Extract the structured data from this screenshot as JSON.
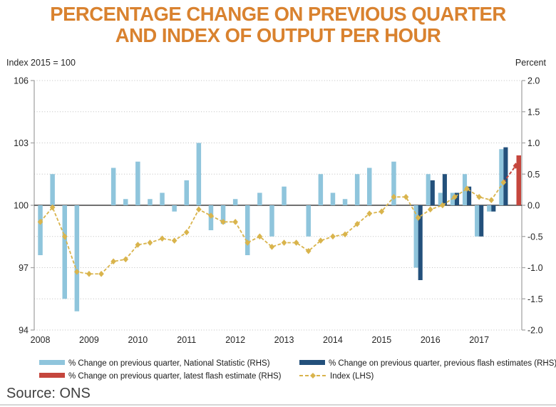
{
  "title": {
    "line1": "PERCENTAGE CHANGE ON PREVIOUS QUARTER",
    "line2": "AND INDEX OF OUTPUT PER HOUR"
  },
  "axis_titles": {
    "left": "Index 2015 = 100",
    "right": "Percent"
  },
  "source": "Source: ONS",
  "colors": {
    "title_orange": "#D9822F",
    "national_statistic": "#8FC5DC",
    "previous_flash": "#23507B",
    "latest_flash": "#C5463D",
    "index_line": "#D9B44C",
    "gridline": "#bfbfbf",
    "zero_line": "#404040",
    "axis_line": "#a6a6a6",
    "tick_text": "#262626"
  },
  "legend": {
    "items": [
      {
        "label": "% Change on previous quarter, National Statistic (RHS)",
        "swatch": "national_statistic"
      },
      {
        "label": "% Change on previous quarter, latest flash estimate (RHS)",
        "swatch": "latest_flash"
      },
      {
        "label": "% Change on previous quarter, previous flash estimates (RHS)",
        "swatch": "previous_flash"
      },
      {
        "label": "Index (LHS)",
        "swatch": "index_line_dashed"
      }
    ]
  },
  "chart_data": {
    "type": "bar+line dual-axis",
    "x_years": [
      "2008",
      "2009",
      "2010",
      "2011",
      "2012",
      "2013",
      "2014",
      "2015",
      "2016",
      "2017"
    ],
    "quarters": [
      "2008 Q1",
      "2008 Q2",
      "2008 Q3",
      "2008 Q4",
      "2009 Q1",
      "2009 Q2",
      "2009 Q3",
      "2009 Q4",
      "2010 Q1",
      "2010 Q2",
      "2010 Q3",
      "2010 Q4",
      "2011 Q1",
      "2011 Q2",
      "2011 Q3",
      "2011 Q4",
      "2012 Q1",
      "2012 Q2",
      "2012 Q3",
      "2012 Q4",
      "2013 Q1",
      "2013 Q2",
      "2013 Q3",
      "2013 Q4",
      "2014 Q1",
      "2014 Q2",
      "2014 Q3",
      "2014 Q4",
      "2015 Q1",
      "2015 Q2",
      "2015 Q3",
      "2015 Q4",
      "2016 Q1",
      "2016 Q2",
      "2016 Q3",
      "2016 Q4",
      "2017 Q1",
      "2017 Q2",
      "2017 Q3",
      "2017 Q4"
    ],
    "left_axis": {
      "label": "Index 2015 = 100",
      "range": [
        94,
        106
      ],
      "ticks": [
        106,
        103,
        100,
        97,
        94
      ],
      "grid": "dotted"
    },
    "right_axis": {
      "label": "Percent",
      "range": [
        -2.0,
        2.0
      ],
      "ticks": [
        2.0,
        1.5,
        1.0,
        0.5,
        0.0,
        -0.5,
        -1.0,
        -1.5,
        -2.0
      ],
      "zero_line": "solid"
    },
    "legend_position": "bottom",
    "series": [
      {
        "name": "% Change on previous quarter, National Statistic (RHS)",
        "type": "bar",
        "axis": "right",
        "color": "#8FC5DC",
        "values": [
          -0.8,
          0.5,
          -1.5,
          -1.7,
          null,
          null,
          0.6,
          0.1,
          0.7,
          0.1,
          0.2,
          -0.1,
          0.4,
          1.0,
          -0.4,
          -0.3,
          0.1,
          -0.8,
          0.2,
          -0.5,
          0.3,
          null,
          -0.5,
          0.5,
          0.2,
          0.1,
          0.5,
          0.6,
          null,
          0.7,
          null,
          -1.0,
          0.5,
          0.2,
          0.2,
          0.5,
          -0.5,
          -0.1,
          0.9,
          null
        ]
      },
      {
        "name": "% Change on previous quarter, previous flash estimates (RHS)",
        "type": "bar",
        "axis": "right",
        "color": "#23507B",
        "values": [
          null,
          null,
          null,
          null,
          null,
          null,
          null,
          null,
          null,
          null,
          null,
          null,
          null,
          null,
          null,
          null,
          null,
          null,
          null,
          null,
          null,
          null,
          null,
          null,
          null,
          null,
          null,
          null,
          null,
          null,
          null,
          -1.2,
          0.4,
          0.5,
          0.2,
          0.3,
          -0.5,
          -0.1,
          0.93,
          null
        ]
      },
      {
        "name": "% Change on previous quarter, latest flash estimate (RHS)",
        "type": "bar",
        "axis": "right",
        "color": "#C5463D",
        "values": [
          null,
          null,
          null,
          null,
          null,
          null,
          null,
          null,
          null,
          null,
          null,
          null,
          null,
          null,
          null,
          null,
          null,
          null,
          null,
          null,
          null,
          null,
          null,
          null,
          null,
          null,
          null,
          null,
          null,
          null,
          null,
          null,
          null,
          null,
          null,
          null,
          null,
          null,
          null,
          0.8
        ]
      },
      {
        "name": "Index (LHS)",
        "type": "line",
        "axis": "left",
        "style": "dashed-diamond",
        "color": "#D9B44C",
        "last_segment_color": "#C5463D",
        "values": [
          99.2,
          99.9,
          98.5,
          96.8,
          96.7,
          96.7,
          97.3,
          97.4,
          98.1,
          98.2,
          98.4,
          98.3,
          98.7,
          99.8,
          99.5,
          99.2,
          99.2,
          98.2,
          98.5,
          98.0,
          98.2,
          98.2,
          97.8,
          98.3,
          98.5,
          98.6,
          99.1,
          99.6,
          99.7,
          100.4,
          100.4,
          99.4,
          99.8,
          100.0,
          100.4,
          100.8,
          100.4,
          100.25,
          101.1,
          101.9
        ]
      }
    ]
  }
}
